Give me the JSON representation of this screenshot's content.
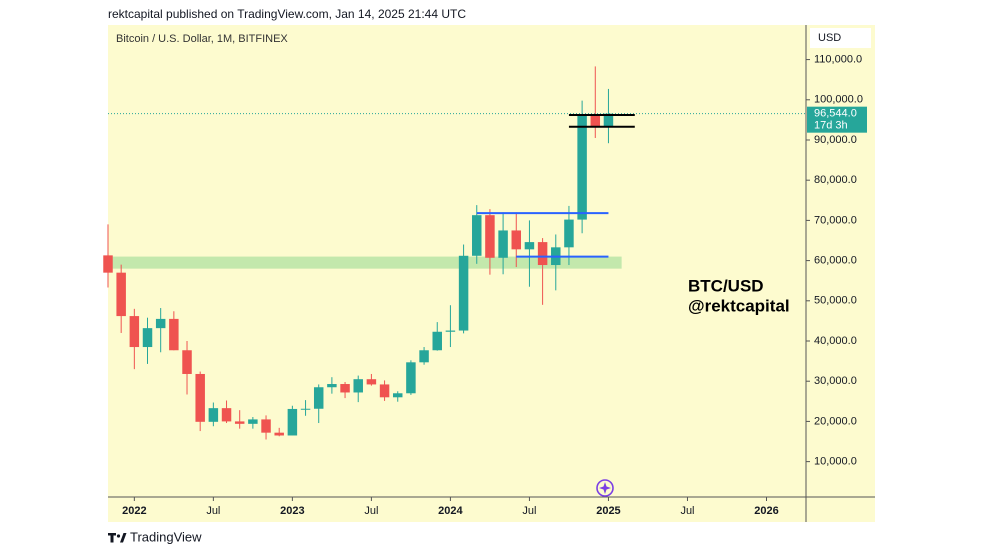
{
  "header": {
    "title": "rektcapital published on TradingView.com, Jan 14, 2025 21:44 UTC"
  },
  "footer": {
    "brand": "TradingView"
  },
  "chart_data": {
    "type": "candlestick",
    "title": "Bitcoin / U.S. Dollar, 1M, BITFINEX",
    "currency": "USD",
    "annotations": [
      "BTC/USD",
      "@rektcapital"
    ],
    "x": [
      "2021-11",
      "2021-12",
      "2022-01",
      "2022-02",
      "2022-03",
      "2022-04",
      "2022-05",
      "2022-06",
      "2022-07",
      "2022-08",
      "2022-09",
      "2022-10",
      "2022-11",
      "2022-12",
      "2023-01",
      "2023-02",
      "2023-03",
      "2023-04",
      "2023-05",
      "2023-06",
      "2023-07",
      "2023-08",
      "2023-09",
      "2023-10",
      "2023-11",
      "2023-12",
      "2024-01",
      "2024-02",
      "2024-03",
      "2024-04",
      "2024-05",
      "2024-06",
      "2024-07",
      "2024-08",
      "2024-09",
      "2024-10",
      "2024-11",
      "2024-12",
      "2025-01"
    ],
    "open": [
      61300,
      57000,
      46200,
      38500,
      43200,
      45500,
      37700,
      31800,
      19900,
      23300,
      20000,
      19400,
      20500,
      17200,
      16500,
      23100,
      23150,
      28500,
      29300,
      27200,
      30500,
      29200,
      26000,
      27000,
      34700,
      37700,
      42300,
      42600,
      61200,
      71300,
      60700,
      67500,
      62800,
      64600,
      58900,
      63300,
      70200,
      96400,
      93400
    ],
    "high": [
      69000,
      59000,
      48000,
      45800,
      48200,
      47400,
      40000,
      32400,
      24700,
      25200,
      22800,
      21100,
      21500,
      18400,
      23900,
      25300,
      29200,
      31000,
      29800,
      31400,
      31800,
      30200,
      27500,
      35200,
      38500,
      44700,
      48900,
      64000,
      73800,
      72800,
      72000,
      72000,
      70000,
      65600,
      66500,
      73600,
      99800,
      108300,
      102700
    ],
    "low": [
      53300,
      42000,
      33000,
      34300,
      37200,
      37700,
      26700,
      17600,
      18800,
      19600,
      18200,
      18200,
      15500,
      16300,
      16500,
      21400,
      19600,
      26900,
      25800,
      24800,
      28900,
      25100,
      24900,
      26600,
      34100,
      37600,
      38500,
      41900,
      59200,
      56500,
      56600,
      58400,
      53500,
      49000,
      52600,
      58900,
      66800,
      90500,
      89200
    ],
    "close": [
      57000,
      46200,
      38500,
      43200,
      45500,
      37700,
      31800,
      19900,
      23300,
      20000,
      19400,
      20500,
      17200,
      16500,
      23100,
      23150,
      28500,
      29300,
      27200,
      30500,
      29200,
      26000,
      27000,
      34700,
      37700,
      42300,
      42600,
      61200,
      71300,
      60700,
      67500,
      62800,
      64600,
      58900,
      63300,
      70200,
      96400,
      93400,
      96544
    ],
    "last_label": "96,544.0",
    "countdown": "17d 3h",
    "up_color": "#26a69a",
    "down_color": "#ef5350",
    "xlim": [
      "2021-11",
      "2026-04"
    ],
    "xticks": [
      {
        "value": "2022-01",
        "label": "2022"
      },
      {
        "value": "2022-07",
        "label": "Jul"
      },
      {
        "value": "2023-01",
        "label": "2023"
      },
      {
        "value": "2023-07",
        "label": "Jul"
      },
      {
        "value": "2024-01",
        "label": "2024"
      },
      {
        "value": "2024-07",
        "label": "Jul"
      },
      {
        "value": "2025-01",
        "label": "2025"
      },
      {
        "value": "2025-07",
        "label": "Jul"
      },
      {
        "value": "2026-01",
        "label": "2026"
      }
    ],
    "ylim": [
      1200,
      118600
    ],
    "yticks": [
      {
        "value": 10000,
        "label": "10,000.0"
      },
      {
        "value": 20000,
        "label": "20,000.0"
      },
      {
        "value": 30000,
        "label": "30,000.0"
      },
      {
        "value": 40000,
        "label": "40,000.0"
      },
      {
        "value": 50000,
        "label": "50,000.0"
      },
      {
        "value": 60000,
        "label": "60,000.0"
      },
      {
        "value": 70000,
        "label": "70,000.0"
      },
      {
        "value": 80000,
        "label": "80,000.0"
      },
      {
        "value": 90000,
        "label": "90,000.0"
      },
      {
        "value": 100000,
        "label": "100,000.0"
      },
      {
        "value": 110000,
        "label": "110,000.0"
      }
    ],
    "band": {
      "low": 58000,
      "high": 61000,
      "from": "2021-11",
      "to": "2025-02",
      "color": "#b9e4a6"
    },
    "levels": [
      {
        "value": 71800,
        "from": "2024-03",
        "to": "2025-01",
        "color": "#2962ff"
      },
      {
        "value": 61000,
        "from": "2024-06",
        "to": "2025-01",
        "color": "#2962ff"
      },
      {
        "value": 96200,
        "from": "2024-10",
        "to": "2025-03",
        "color": "#000000"
      },
      {
        "value": 93300,
        "from": "2024-10",
        "to": "2025-03",
        "color": "#000000"
      }
    ]
  }
}
